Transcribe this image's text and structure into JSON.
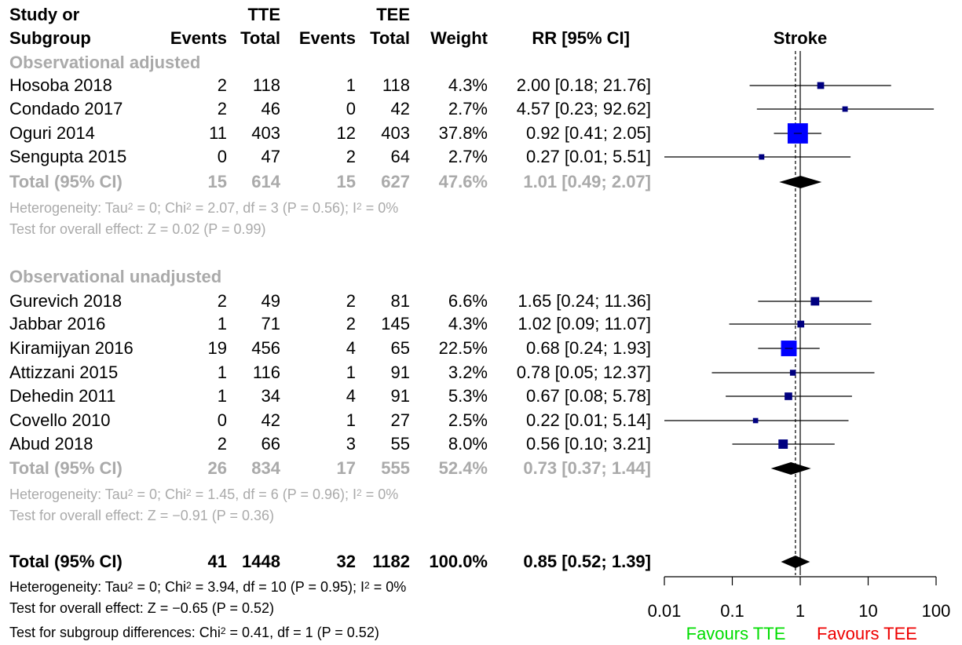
{
  "headers": {
    "study_l1": "Study or",
    "study_l2": "Subgroup",
    "tte": "TTE",
    "tee": "TEE",
    "events": "Events",
    "total": "Total",
    "weight": "Weight",
    "rr": "RR [95% CI]",
    "plot_title": "Stroke"
  },
  "subgroups": [
    {
      "label": "Observational adjusted",
      "studies": [
        {
          "name": "Hosoba 2018",
          "e1": "2",
          "n1": "118",
          "e2": "1",
          "n2": "118",
          "weight": "4.3%",
          "rr": "2.00 [0.18; 21.76]"
        },
        {
          "name": "Condado 2017",
          "e1": "2",
          "n1": "46",
          "e2": "0",
          "n2": "42",
          "weight": "2.7%",
          "rr": "4.57 [0.23; 92.62]"
        },
        {
          "name": "Oguri 2014",
          "e1": "11",
          "n1": "403",
          "e2": "12",
          "n2": "403",
          "weight": "37.8%",
          "rr": "0.92 [0.41;  2.05]"
        },
        {
          "name": "Sengupta 2015",
          "e1": "0",
          "n1": "47",
          "e2": "2",
          "n2": "64",
          "weight": "2.7%",
          "rr": "0.27 [0.01;  5.51]"
        }
      ],
      "total": {
        "name": "Total (95% CI)",
        "e1": "15",
        "n1": "614",
        "e2": "15",
        "n2": "627",
        "weight": "47.6%",
        "rr": "1.01 [0.49;  2.07]"
      },
      "het": {
        "a": "Heterogeneity: Tau",
        "b": "2",
        "c": " = 0; Chi",
        "d": "2",
        "e": " = 2.07, df = 3 (P = 0.56); I",
        "f": "2",
        "g": " = 0%"
      },
      "test": "Test for overall effect: Z = 0.02 (P = 0.99)"
    },
    {
      "label": "Observational unadjusted",
      "studies": [
        {
          "name": "Gurevich 2018",
          "e1": "2",
          "n1": "49",
          "e2": "2",
          "n2": "81",
          "weight": "6.6%",
          "rr": "1.65 [0.24; 11.36]"
        },
        {
          "name": "Jabbar 2016",
          "e1": "1",
          "n1": "71",
          "e2": "2",
          "n2": "145",
          "weight": "4.3%",
          "rr": "1.02 [0.09; 11.07]"
        },
        {
          "name": "Kiramijyan 2016",
          "e1": "19",
          "n1": "456",
          "e2": "4",
          "n2": "65",
          "weight": "22.5%",
          "rr": "0.68 [0.24;  1.93]"
        },
        {
          "name": "Attizzani 2015",
          "e1": "1",
          "n1": "116",
          "e2": "1",
          "n2": "91",
          "weight": "3.2%",
          "rr": "0.78 [0.05; 12.37]"
        },
        {
          "name": "Dehedin 2011",
          "e1": "1",
          "n1": "34",
          "e2": "4",
          "n2": "91",
          "weight": "5.3%",
          "rr": "0.67 [0.08;  5.78]"
        },
        {
          "name": "Covello 2010",
          "e1": "0",
          "n1": "42",
          "e2": "1",
          "n2": "27",
          "weight": "2.5%",
          "rr": "0.22 [0.01;  5.14]"
        },
        {
          "name": "Abud 2018",
          "e1": "2",
          "n1": "66",
          "e2": "3",
          "n2": "55",
          "weight": "8.0%",
          "rr": "0.56 [0.10;  3.21]"
        }
      ],
      "total": {
        "name": "Total (95% CI)",
        "e1": "26",
        "n1": "834",
        "e2": "17",
        "n2": "555",
        "weight": "52.4%",
        "rr": "0.73 [0.37;  1.44]"
      },
      "het": {
        "a": "Heterogeneity: Tau",
        "b": "2",
        "c": " = 0; Chi",
        "d": "2",
        "e": " = 1.45, df = 6 (P = 0.96); I",
        "f": "2",
        "g": " = 0%"
      },
      "test": "Test for overall effect: Z = −0.91 (P = 0.36)"
    }
  ],
  "overall": {
    "total": {
      "name": "Total (95% CI)",
      "e1": "41",
      "n1": "1448",
      "e2": "32",
      "n2": "1182",
      "weight": "100.0%",
      "rr": "0.85 [0.52;  1.39]"
    },
    "het": {
      "a": "Heterogeneity: Tau",
      "b": "2",
      "c": " = 0; Chi",
      "d": "2",
      "e": " = 3.94, df = 10 (P = 0.95); I",
      "f": "2",
      "g": " = 0%"
    },
    "test": "Test for overall effect: Z = −0.65 (P = 0.52)",
    "subgroup_test": {
      "a": "Test for subgroup differences: Chi",
      "b": "2",
      "c": " = 0.41, df = 1 (P = 0.52)"
    }
  },
  "chart_data": {
    "type": "forest",
    "scale": "log",
    "xlim": [
      0.01,
      100
    ],
    "ticks": [
      0.01,
      0.1,
      1,
      10,
      100
    ],
    "tick_labels": [
      "0.01",
      "0.1",
      "1",
      "10",
      "100"
    ],
    "null_value": 1,
    "pooled_estimate": 0.85,
    "favours_left": "Favours TTE",
    "favours_right": "Favours TEE",
    "colors": {
      "square": "#0000ff",
      "square_small": "#000080",
      "diamond": "#000000",
      "left_label": "#00dd00",
      "right_label": "#ee0000",
      "grey": "#aaaaaa"
    },
    "studies": [
      {
        "est": 2.0,
        "lo": 0.18,
        "hi": 21.76,
        "w": 4.3
      },
      {
        "est": 4.57,
        "lo": 0.23,
        "hi": 92.62,
        "w": 2.7
      },
      {
        "est": 0.92,
        "lo": 0.41,
        "hi": 2.05,
        "w": 37.8
      },
      {
        "est": 0.27,
        "lo": 0.01,
        "hi": 5.51,
        "w": 2.7
      },
      {
        "est": 1.65,
        "lo": 0.24,
        "hi": 11.36,
        "w": 6.6
      },
      {
        "est": 1.02,
        "lo": 0.09,
        "hi": 11.07,
        "w": 4.3
      },
      {
        "est": 0.68,
        "lo": 0.24,
        "hi": 1.93,
        "w": 22.5
      },
      {
        "est": 0.78,
        "lo": 0.05,
        "hi": 12.37,
        "w": 3.2
      },
      {
        "est": 0.67,
        "lo": 0.08,
        "hi": 5.78,
        "w": 5.3
      },
      {
        "est": 0.22,
        "lo": 0.01,
        "hi": 5.14,
        "w": 2.5
      },
      {
        "est": 0.56,
        "lo": 0.1,
        "hi": 3.21,
        "w": 8.0
      }
    ],
    "diamonds": [
      {
        "est": 1.01,
        "lo": 0.49,
        "hi": 2.07
      },
      {
        "est": 0.73,
        "lo": 0.37,
        "hi": 1.44
      },
      {
        "est": 0.85,
        "lo": 0.52,
        "hi": 1.39
      }
    ]
  }
}
